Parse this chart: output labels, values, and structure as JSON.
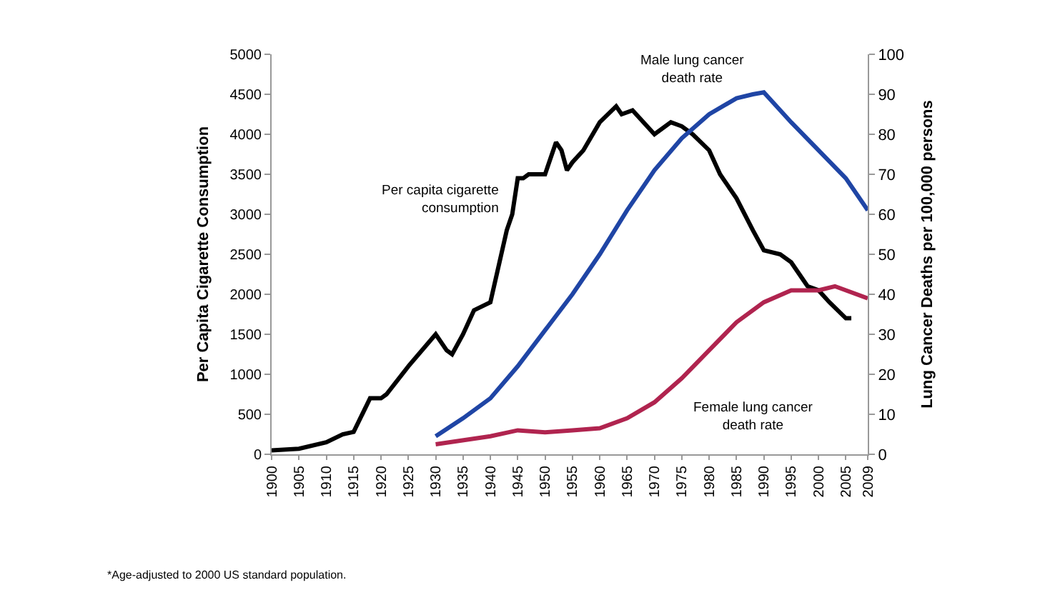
{
  "chart_data": {
    "type": "line",
    "ylabel": "Per Capita Cigarette Consumption",
    "y2label": "Lung Cancer Deaths per 100,000 persons",
    "xlim": [
      1900,
      2009
    ],
    "xticks": [
      1900,
      1905,
      1910,
      1915,
      1920,
      1925,
      1930,
      1935,
      1940,
      1945,
      1950,
      1955,
      1960,
      1965,
      1970,
      1975,
      1980,
      1985,
      1990,
      1995,
      2000,
      2005,
      2009
    ],
    "ylim": [
      0,
      5000
    ],
    "yticks": [
      0,
      500,
      1000,
      1500,
      2000,
      2500,
      3000,
      3500,
      4000,
      4500,
      5000
    ],
    "y2lim": [
      0,
      100
    ],
    "y2ticks": [
      0,
      10,
      20,
      30,
      40,
      50,
      60,
      70,
      80,
      90,
      100
    ],
    "marker": "none",
    "line_style": "solid",
    "series": [
      {
        "color": "#000000",
        "x": [
          1900,
          1905,
          1910,
          1913,
          1915,
          1918,
          1920,
          1921,
          1925,
          1930,
          1932,
          1933,
          1935,
          1937,
          1940,
          1943,
          1944,
          1945,
          1946,
          1947,
          1950,
          1952,
          1953,
          1954,
          1955,
          1957,
          1960,
          1963,
          1964,
          1966,
          1970,
          1973,
          1975,
          1977,
          1980,
          1982,
          1985,
          1988,
          1990,
          1993,
          1995,
          1998,
          2000,
          2002,
          2005,
          2006
        ],
        "values": [
          50,
          70,
          150,
          250,
          280,
          700,
          700,
          750,
          1100,
          1500,
          1300,
          1250,
          1500,
          1800,
          1900,
          2800,
          3000,
          3450,
          3450,
          3500,
          3500,
          3900,
          3800,
          3550,
          3650,
          3800,
          4150,
          4350,
          4250,
          4300,
          4000,
          4150,
          4100,
          4000,
          3800,
          3500,
          3200,
          2800,
          2550,
          2500,
          2400,
          2100,
          2050,
          1900,
          1700,
          1700
        ]
      },
      {
        "color": "#1f45a5",
        "axis": "y2",
        "x": [
          1930,
          1935,
          1940,
          1945,
          1950,
          1955,
          1960,
          1965,
          1970,
          1975,
          1980,
          1985,
          1988,
          1990,
          1995,
          2000,
          2005,
          2009
        ],
        "values": [
          4.5,
          9,
          14,
          22,
          31,
          40,
          50,
          61,
          71,
          79,
          85,
          89,
          90,
          90.5,
          83,
          76,
          69,
          61
        ]
      },
      {
        "color": "#b0244f",
        "axis": "y2",
        "x": [
          1930,
          1940,
          1945,
          1950,
          1955,
          1960,
          1965,
          1970,
          1975,
          1980,
          1985,
          1990,
          1995,
          2000,
          2003,
          2009
        ],
        "values": [
          2.5,
          4.5,
          6,
          5.5,
          6,
          6.5,
          9,
          13,
          19,
          26,
          33,
          38,
          41,
          41,
          42,
          39
        ]
      }
    ],
    "annotations": [
      "Per capita cigarette\nconsumption",
      "Male lung cancer\ndeath rate",
      "Female lung cancer\ndeath rate",
      "*Age-adjusted to 2000 US standard population."
    ]
  }
}
